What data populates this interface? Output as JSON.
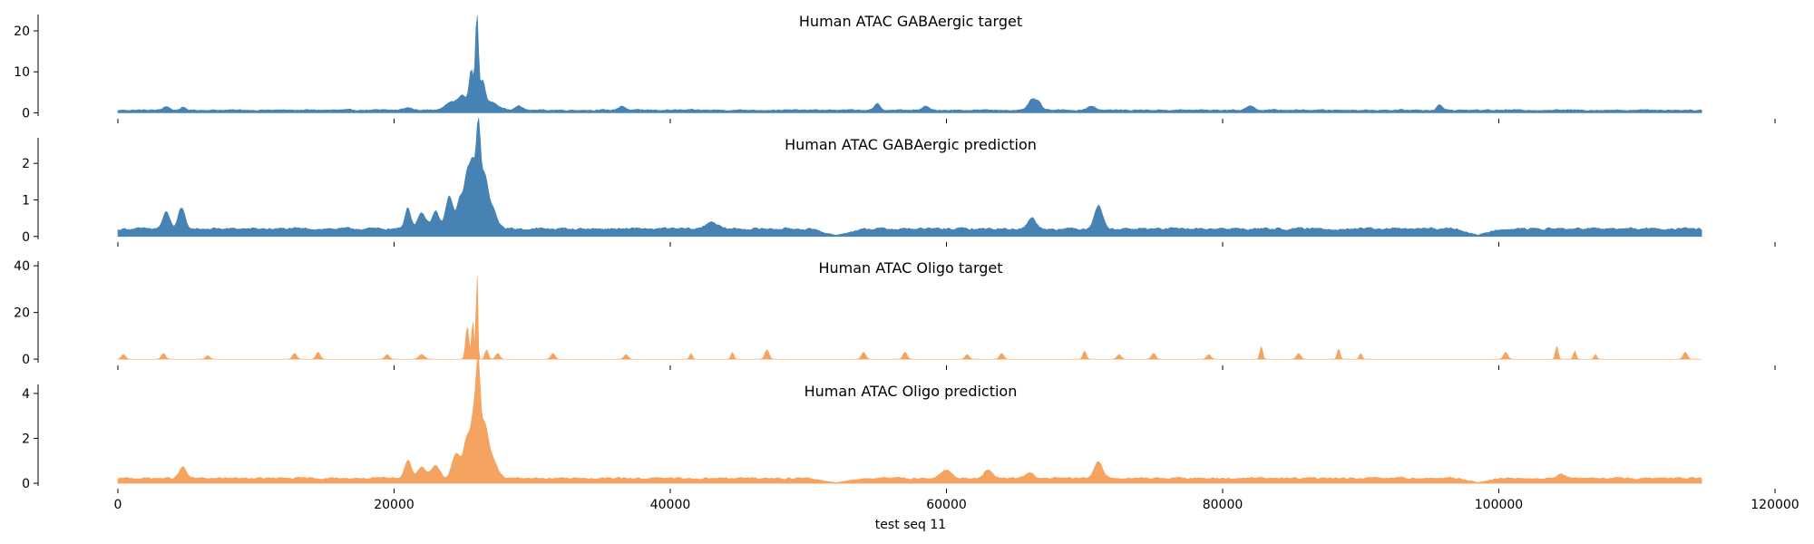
{
  "chart_data": {
    "type": "area",
    "xlabel": "test seq 11",
    "xlim": [
      0,
      120000
    ],
    "data_x_range": [
      0,
      114688
    ],
    "xticks": [
      0,
      20000,
      40000,
      60000,
      80000,
      100000,
      120000
    ],
    "grid": false,
    "colors": {
      "blue": "#4682b4",
      "orange": "#f4a460"
    },
    "panels": [
      {
        "title": "Human ATAC GABAergic target",
        "color": "#4682b4",
        "ylim": [
          -0.8,
          24
        ],
        "yticks": [
          0,
          10,
          20
        ],
        "baseline": 0.4,
        "noise": 0.55,
        "peaks": [
          [
            3500,
            0.9,
            220
          ],
          [
            4700,
            0.6,
            200
          ],
          [
            21000,
            0.6,
            300
          ],
          [
            24200,
            2.0,
            500
          ],
          [
            25000,
            3.0,
            300
          ],
          [
            25600,
            9.5,
            160
          ],
          [
            26000,
            22.5,
            110
          ],
          [
            26400,
            6.5,
            180
          ],
          [
            27000,
            2.0,
            500
          ],
          [
            29000,
            1.2,
            250
          ],
          [
            36500,
            1.0,
            250
          ],
          [
            55000,
            1.5,
            200
          ],
          [
            58500,
            1.0,
            200
          ],
          [
            66200,
            2.7,
            250
          ],
          [
            66700,
            1.8,
            200
          ],
          [
            70500,
            1.0,
            300
          ],
          [
            82000,
            1.0,
            300
          ],
          [
            95700,
            1.4,
            180
          ]
        ]
      },
      {
        "title": "Human ATAC GABAergic prediction",
        "color": "#4682b4",
        "ylim": [
          -0.08,
          2.7
        ],
        "yticks": [
          0,
          1,
          2
        ],
        "baseline": 0.15,
        "noise": 0.12,
        "quiet": [
          [
            50000,
            54000
          ],
          [
            97000,
            100000
          ],
          [
            115000,
            119000
          ]
        ],
        "peaks": [
          [
            3500,
            0.45,
            250
          ],
          [
            4600,
            0.55,
            250
          ],
          [
            21000,
            0.6,
            200
          ],
          [
            22000,
            0.45,
            300
          ],
          [
            23000,
            0.5,
            250
          ],
          [
            24000,
            0.9,
            250
          ],
          [
            24800,
            0.85,
            250
          ],
          [
            25300,
            1.3,
            200
          ],
          [
            25700,
            1.7,
            200
          ],
          [
            26100,
            2.45,
            150
          ],
          [
            26500,
            1.2,
            250
          ],
          [
            27000,
            0.6,
            400
          ],
          [
            43000,
            0.2,
            400
          ],
          [
            66200,
            0.3,
            300
          ],
          [
            71000,
            0.65,
            300
          ]
        ]
      },
      {
        "title": "Human ATAC Oligo target",
        "color": "#f4a460",
        "ylim": [
          -1.5,
          42
        ],
        "yticks": [
          0,
          20,
          40
        ],
        "baseline": 0.0,
        "noise": 0.0,
        "peaks": [
          [
            400,
            2.0,
            150
          ],
          [
            3300,
            2.5,
            150
          ],
          [
            6500,
            1.5,
            150
          ],
          [
            12800,
            2.5,
            150
          ],
          [
            14500,
            3.0,
            150
          ],
          [
            19500,
            2.0,
            150
          ],
          [
            22000,
            2.0,
            200
          ],
          [
            25300,
            14.0,
            120
          ],
          [
            25700,
            17.0,
            80
          ],
          [
            26000,
            40.0,
            60
          ],
          [
            26700,
            4.0,
            120
          ],
          [
            27500,
            2.5,
            150
          ],
          [
            31500,
            2.5,
            150
          ],
          [
            36800,
            2.0,
            150
          ],
          [
            41500,
            2.5,
            100
          ],
          [
            44500,
            3.0,
            100
          ],
          [
            47000,
            4.0,
            150
          ],
          [
            54000,
            3.0,
            150
          ],
          [
            57000,
            3.0,
            150
          ],
          [
            61500,
            2.0,
            150
          ],
          [
            64000,
            2.5,
            150
          ],
          [
            70000,
            3.5,
            120
          ],
          [
            72500,
            2.0,
            150
          ],
          [
            75000,
            2.5,
            150
          ],
          [
            79000,
            2.0,
            150
          ],
          [
            82800,
            5.5,
            100
          ],
          [
            85500,
            2.5,
            150
          ],
          [
            88400,
            4.5,
            100
          ],
          [
            90000,
            2.5,
            100
          ],
          [
            100500,
            3.0,
            150
          ],
          [
            104200,
            5.5,
            100
          ],
          [
            105500,
            3.5,
            100
          ],
          [
            107000,
            2.0,
            100
          ],
          [
            113500,
            3.0,
            150
          ]
        ]
      },
      {
        "title": "Human ATAC Oligo prediction",
        "color": "#f4a460",
        "ylim": [
          -0.12,
          4.4
        ],
        "yticks": [
          0,
          2,
          4
        ],
        "baseline": 0.15,
        "noise": 0.15,
        "quiet": [
          [
            50000,
            54000
          ],
          [
            97000,
            100000
          ]
        ],
        "peaks": [
          [
            4700,
            0.5,
            250
          ],
          [
            21000,
            0.8,
            250
          ],
          [
            22000,
            0.5,
            300
          ],
          [
            23000,
            0.6,
            300
          ],
          [
            24500,
            1.1,
            300
          ],
          [
            25300,
            1.8,
            250
          ],
          [
            25800,
            2.7,
            200
          ],
          [
            26100,
            3.9,
            150
          ],
          [
            26500,
            2.0,
            250
          ],
          [
            27000,
            1.0,
            400
          ],
          [
            60000,
            0.35,
            400
          ],
          [
            63000,
            0.35,
            300
          ],
          [
            66000,
            0.25,
            300
          ],
          [
            71000,
            0.75,
            300
          ],
          [
            104500,
            0.2,
            300
          ]
        ]
      }
    ]
  }
}
